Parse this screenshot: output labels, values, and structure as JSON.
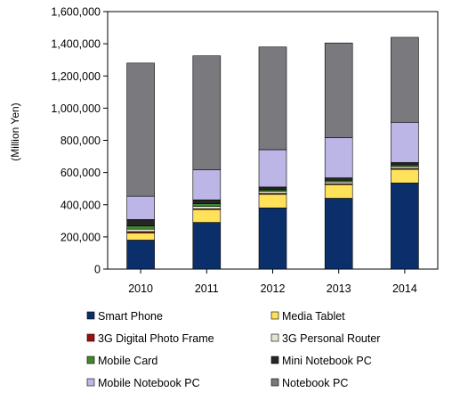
{
  "chart_data": {
    "type": "bar",
    "stacked": true,
    "categories": [
      "2010",
      "2011",
      "2012",
      "2013",
      "2014"
    ],
    "ylabel": "(Million Yen)",
    "xlabel": "",
    "ylim": [
      0,
      1600000
    ],
    "yticks": [
      0,
      200000,
      400000,
      600000,
      800000,
      1000000,
      1200000,
      1400000,
      1600000
    ],
    "ytick_labels": [
      "0",
      "200,000",
      "400,000",
      "600,000",
      "800,000",
      "1,000,000",
      "1,200,000",
      "1,400,000",
      "1,600,000"
    ],
    "grid": false,
    "legend_position": "bottom",
    "series": [
      {
        "name": "Smart Phone",
        "color": "#0b2f6b",
        "values": [
          180000,
          290000,
          380000,
          440000,
          535000
        ]
      },
      {
        "name": "Media Tablet",
        "color": "#ffe15a",
        "values": [
          45000,
          80000,
          85000,
          85000,
          85000
        ]
      },
      {
        "name": "3G Digital Photo Frame",
        "color": "#9b1010",
        "values": [
          8000,
          5000,
          5000,
          5000,
          5000
        ]
      },
      {
        "name": "3G Personal Router",
        "color": "#e4e4cf",
        "values": [
          15000,
          15000,
          13000,
          12000,
          12000
        ]
      },
      {
        "name": "Mobile Card",
        "color": "#3f8a2e",
        "values": [
          20000,
          17000,
          10000,
          10000,
          10000
        ]
      },
      {
        "name": "Mini Notebook PC",
        "color": "#262626",
        "values": [
          40000,
          23000,
          17000,
          15000,
          15000
        ]
      },
      {
        "name": "Mobile Notebook PC",
        "color": "#bcb6e6",
        "values": [
          145000,
          188000,
          232000,
          250000,
          250000
        ]
      },
      {
        "name": "Notebook PC",
        "color": "#7a7a7e",
        "values": [
          827000,
          707000,
          638000,
          588000,
          528000
        ]
      }
    ]
  }
}
